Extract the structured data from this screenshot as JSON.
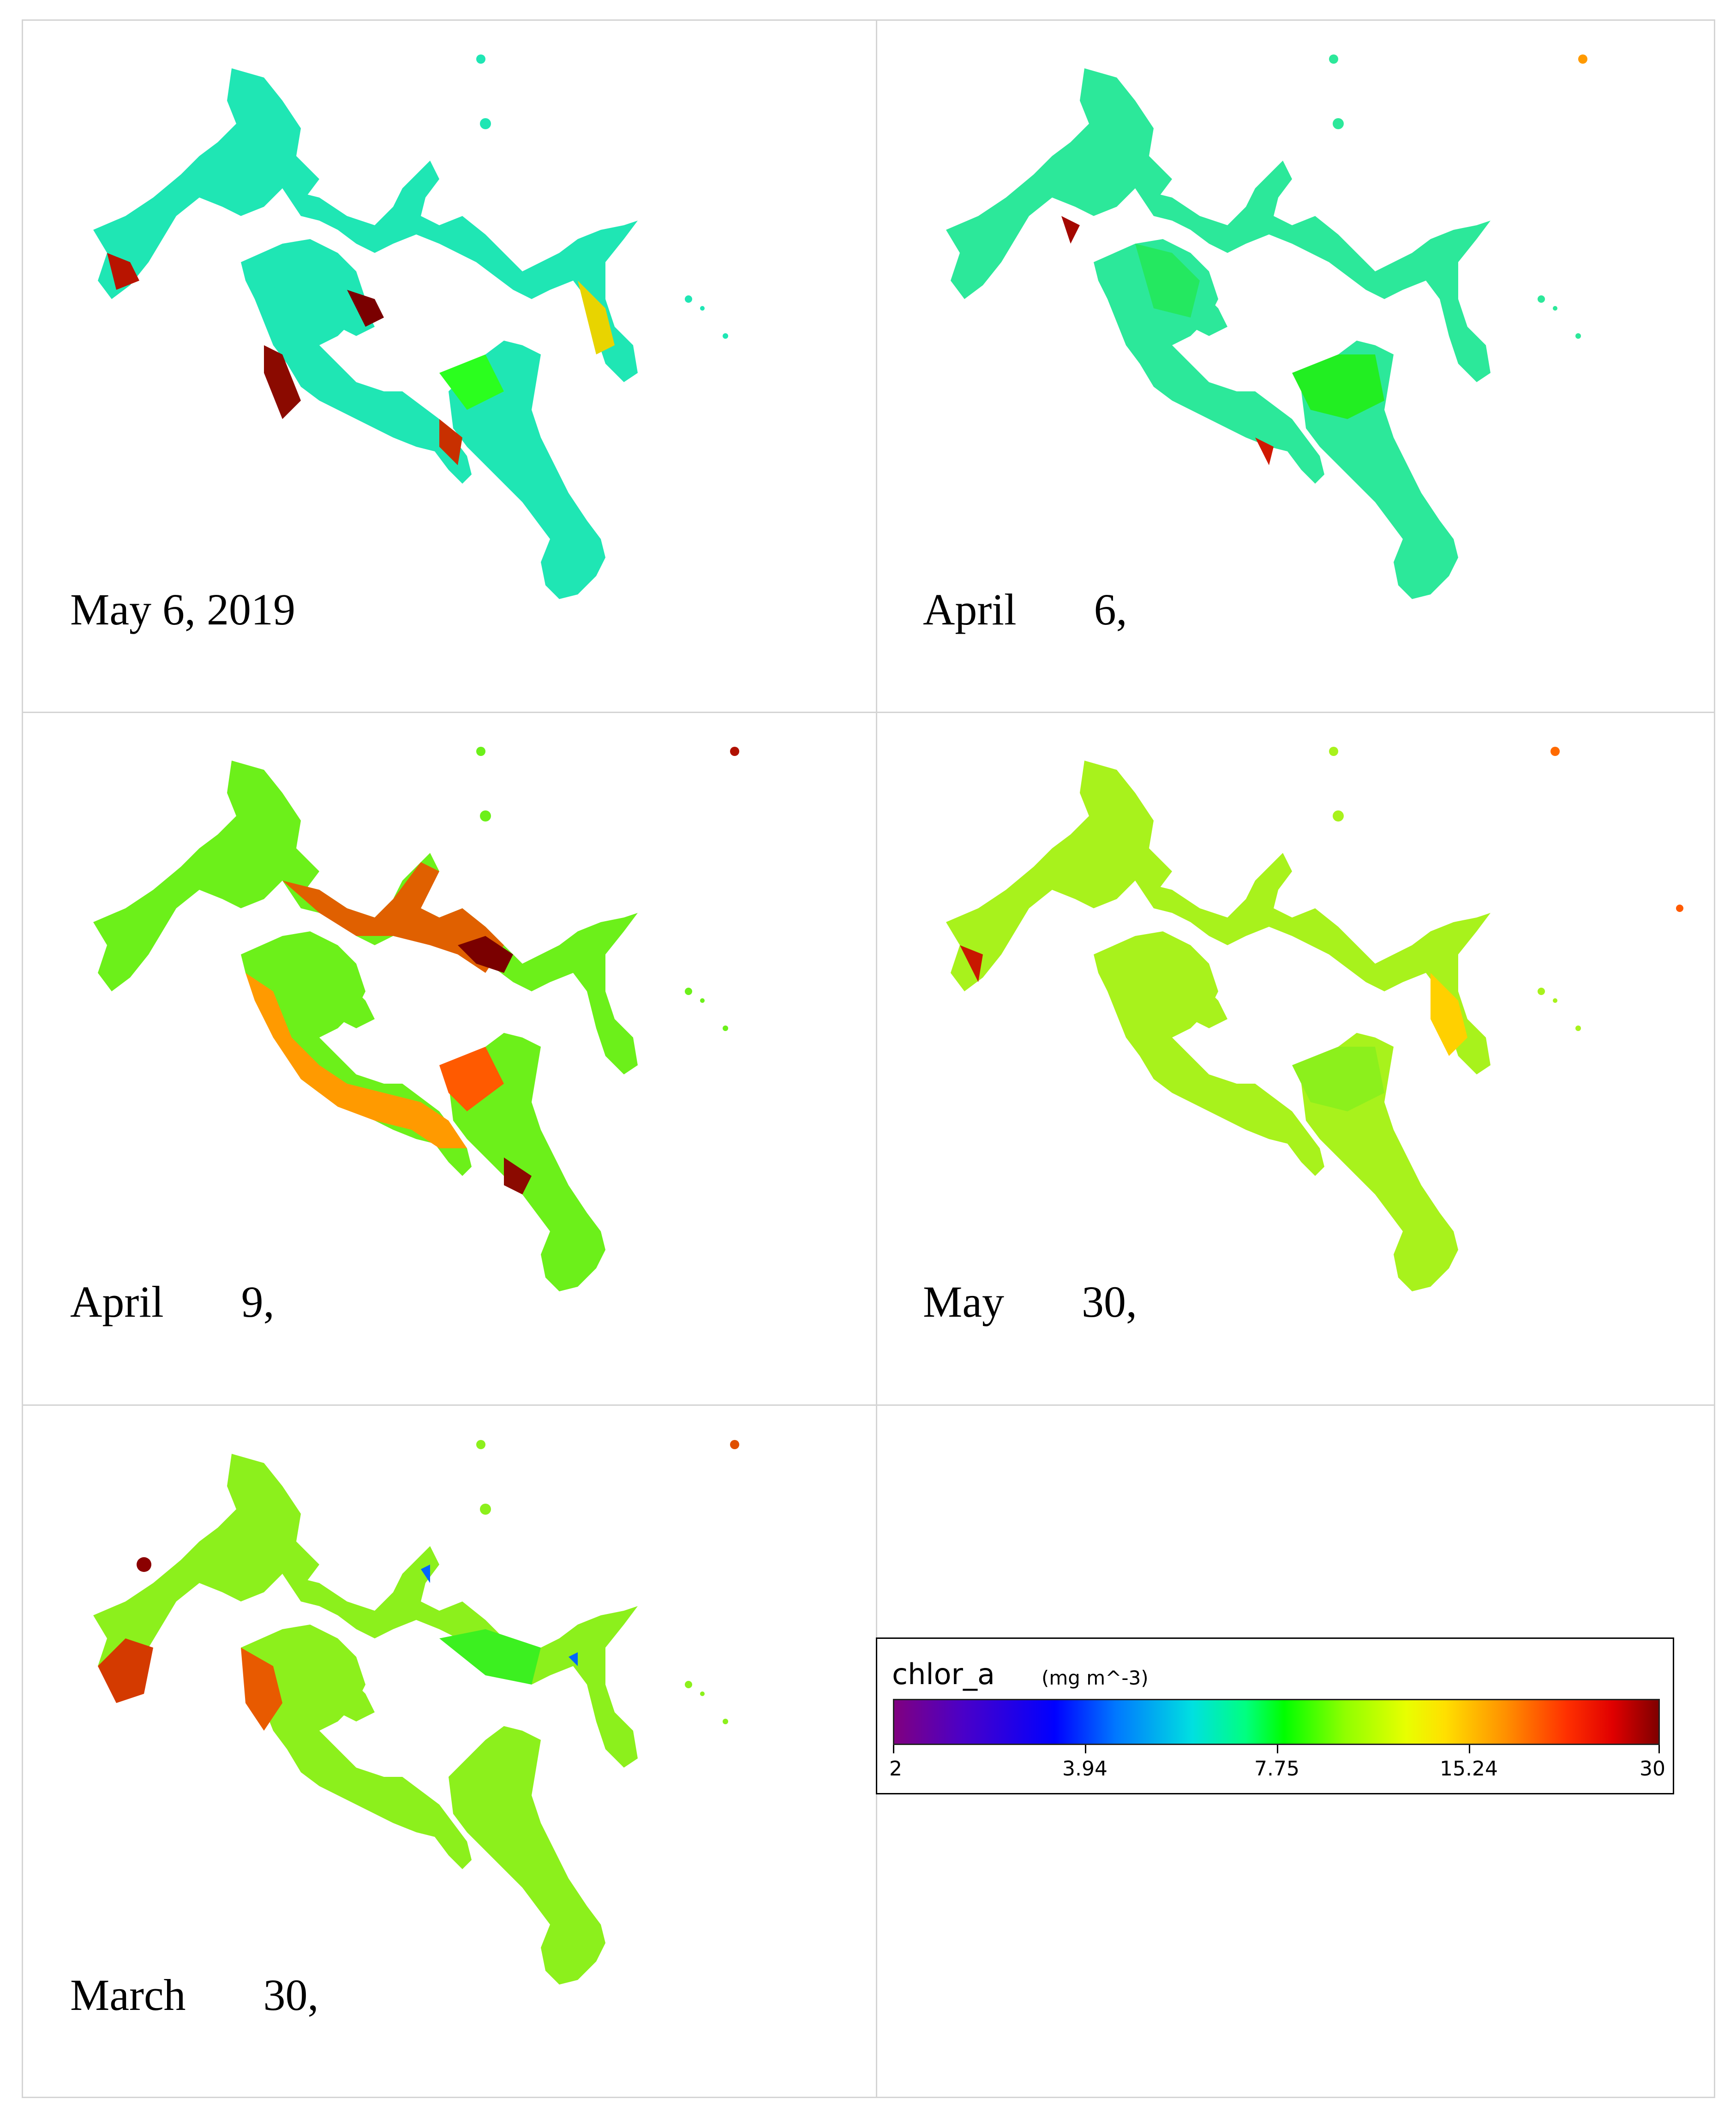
{
  "panels": [
    {
      "label": "May 6, 2019",
      "tone": "cyan"
    },
    {
      "label": "April       6,",
      "tone": "cyan2"
    },
    {
      "label": "April       9,",
      "tone": "orange"
    },
    {
      "label": "May       30,",
      "tone": "yellow"
    },
    {
      "label": "March       30,",
      "tone": "green"
    }
  ],
  "legend": {
    "title": "chlor_a",
    "unit": "(mg m^-3)",
    "ticks": [
      "2",
      "3.94",
      "7.75",
      "15.24",
      "30"
    ]
  },
  "colors": {
    "cyan": "#1fe6b4",
    "green": "#2bff1e",
    "yellow_green": "#b8ff1a",
    "orange": "#ff8a00",
    "red": "#e01a00",
    "dark_red": "#7a0000"
  }
}
